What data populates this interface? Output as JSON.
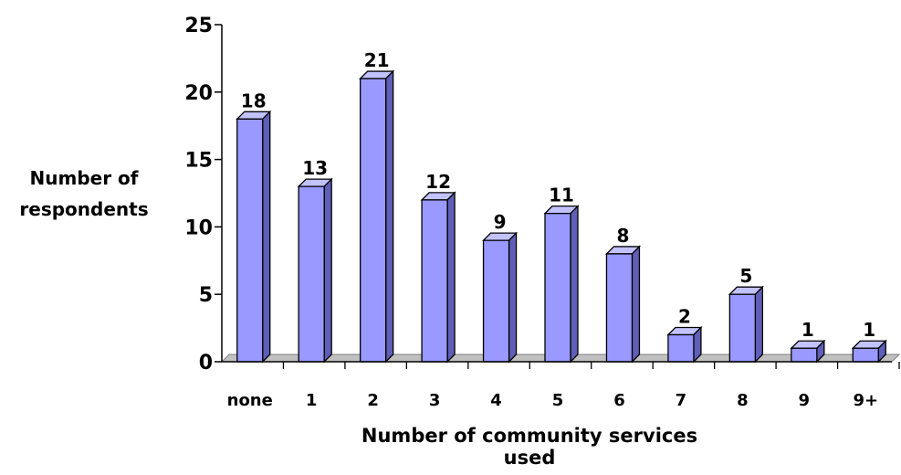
{
  "chart_data": {
    "type": "bar",
    "categories": [
      "none",
      "1",
      "2",
      "3",
      "4",
      "5",
      "6",
      "7",
      "8",
      "9",
      "9+"
    ],
    "values": [
      18,
      13,
      21,
      12,
      9,
      11,
      8,
      2,
      5,
      1,
      1
    ],
    "data_labels": [
      "18",
      "13",
      "21",
      "12",
      "9",
      "11",
      "8",
      "2",
      "5",
      "1",
      "1"
    ],
    "xlabel": "Number of community services used",
    "ylabel_lines": [
      "Number of",
      "respondents"
    ],
    "ylim": [
      0,
      25
    ],
    "yticks": [
      0,
      5,
      10,
      15,
      20,
      25
    ],
    "three_d": true,
    "grid": false,
    "legend": "none",
    "colors": {
      "bar_front": "#9999ff",
      "bar_side": "#5f5fb8",
      "bar_top": "#c2c2ff",
      "floor": "#c0c0c0",
      "outline": "#000000"
    }
  }
}
